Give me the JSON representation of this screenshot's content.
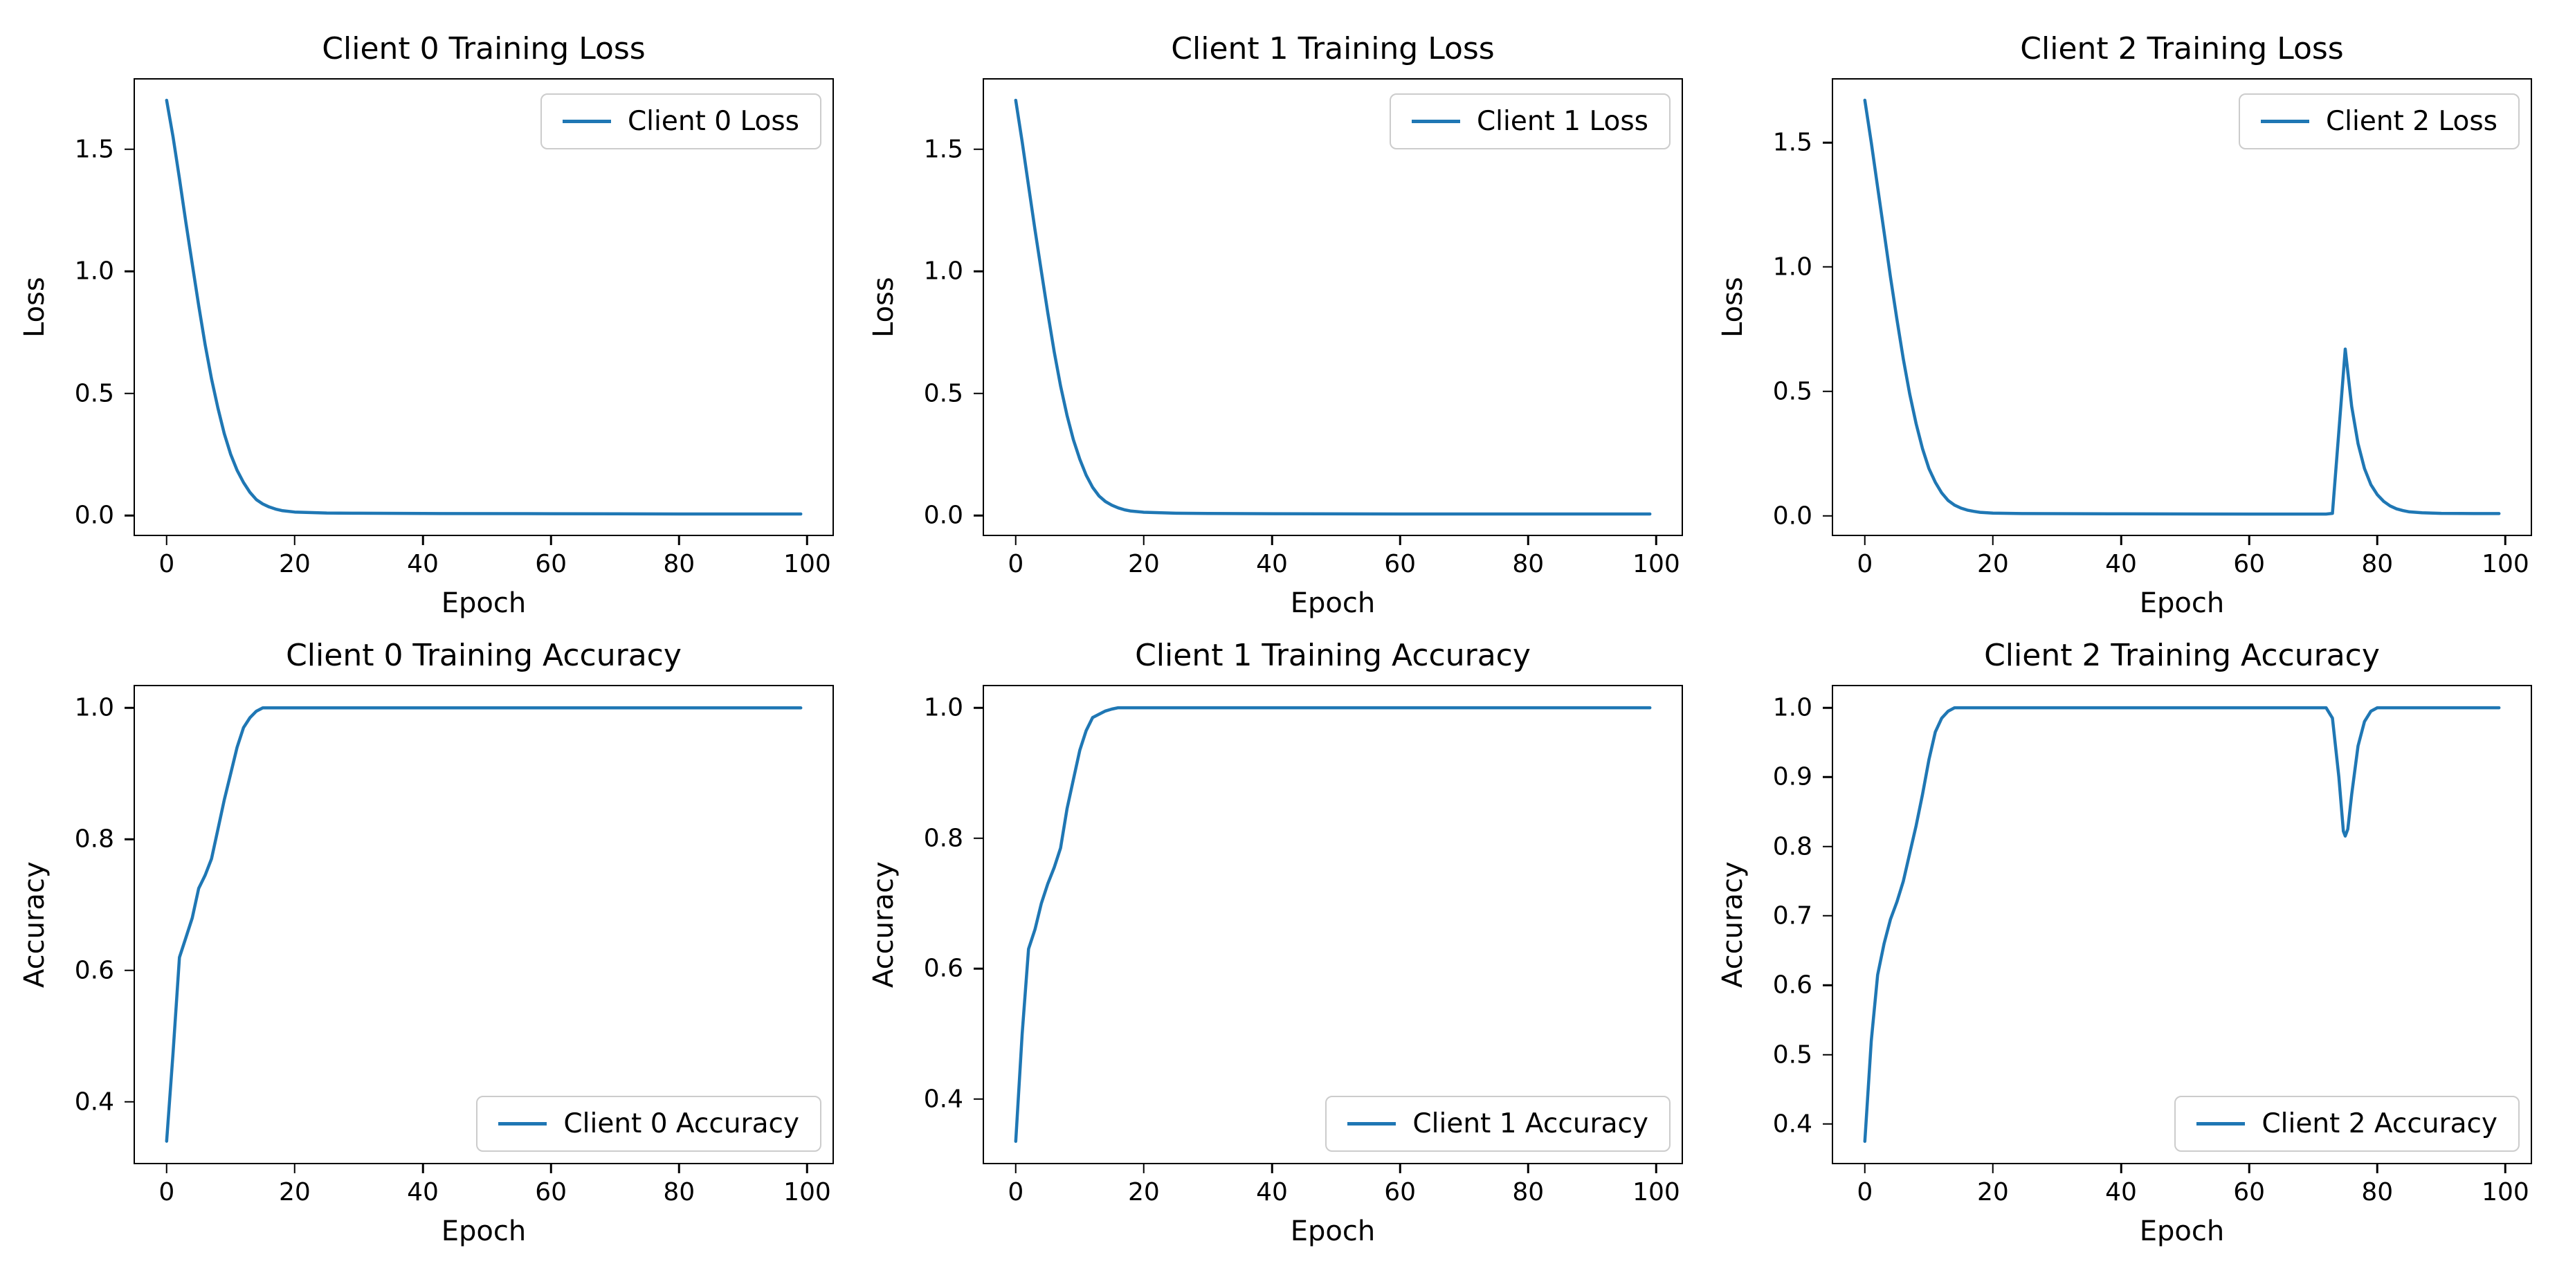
{
  "figure": {
    "background": "#ffffff",
    "line_color": "#1f77b4",
    "text_color": "#000000",
    "spine_color": "#000000",
    "legend_edge_color": "#cccccc",
    "grid": false
  },
  "chart_data": [
    {
      "type": "line",
      "title": "Client 0 Training Loss",
      "xlabel": "Epoch",
      "ylabel": "Loss",
      "legend": [
        "Client 0 Loss"
      ],
      "legend_position": "upper right",
      "xlim": [
        -4.95,
        103.95
      ],
      "ylim": [
        -0.079,
        1.785
      ],
      "xtick_values": [
        0,
        20,
        40,
        60,
        80,
        100
      ],
      "xtick_labels": [
        "0",
        "20",
        "40",
        "60",
        "80",
        "100"
      ],
      "ytick_values": [
        0.0,
        0.5,
        1.0,
        1.5
      ],
      "ytick_labels": [
        "0.0",
        "0.5",
        "1.0",
        "1.5"
      ],
      "series": [
        {
          "name": "Client 0 Loss",
          "points": [
            [
              0,
              1.7
            ],
            [
              1,
              1.55
            ],
            [
              2,
              1.38
            ],
            [
              3,
              1.2
            ],
            [
              4,
              1.03
            ],
            [
              5,
              0.86
            ],
            [
              6,
              0.7
            ],
            [
              7,
              0.56
            ],
            [
              8,
              0.44
            ],
            [
              9,
              0.335
            ],
            [
              10,
              0.25
            ],
            [
              11,
              0.185
            ],
            [
              12,
              0.135
            ],
            [
              13,
              0.095
            ],
            [
              14,
              0.065
            ],
            [
              15,
              0.047
            ],
            [
              16,
              0.035
            ],
            [
              17,
              0.026
            ],
            [
              18,
              0.02
            ],
            [
              20,
              0.014
            ],
            [
              25,
              0.01
            ],
            [
              30,
              0.009
            ],
            [
              40,
              0.008
            ],
            [
              60,
              0.007
            ],
            [
              80,
              0.006
            ],
            [
              99,
              0.006
            ]
          ]
        }
      ]
    },
    {
      "type": "line",
      "title": "Client 1 Training Loss",
      "xlabel": "Epoch",
      "ylabel": "Loss",
      "legend": [
        "Client 1 Loss"
      ],
      "legend_position": "upper right",
      "xlim": [
        -4.95,
        103.95
      ],
      "ylim": [
        -0.079,
        1.785
      ],
      "xtick_values": [
        0,
        20,
        40,
        60,
        80,
        100
      ],
      "xtick_labels": [
        "0",
        "20",
        "40",
        "60",
        "80",
        "100"
      ],
      "ytick_values": [
        0.0,
        0.5,
        1.0,
        1.5
      ],
      "ytick_labels": [
        "0.0",
        "0.5",
        "1.0",
        "1.5"
      ],
      "series": [
        {
          "name": "Client 1 Loss",
          "points": [
            [
              0,
              1.7
            ],
            [
              1,
              1.53
            ],
            [
              2,
              1.35
            ],
            [
              3,
              1.17
            ],
            [
              4,
              1.0
            ],
            [
              5,
              0.83
            ],
            [
              6,
              0.67
            ],
            [
              7,
              0.53
            ],
            [
              8,
              0.41
            ],
            [
              9,
              0.31
            ],
            [
              10,
              0.23
            ],
            [
              11,
              0.165
            ],
            [
              12,
              0.115
            ],
            [
              13,
              0.08
            ],
            [
              14,
              0.057
            ],
            [
              15,
              0.042
            ],
            [
              16,
              0.031
            ],
            [
              17,
              0.023
            ],
            [
              18,
              0.018
            ],
            [
              20,
              0.013
            ],
            [
              25,
              0.009
            ],
            [
              30,
              0.008
            ],
            [
              40,
              0.007
            ],
            [
              60,
              0.006
            ],
            [
              80,
              0.006
            ],
            [
              99,
              0.006
            ]
          ]
        }
      ]
    },
    {
      "type": "line",
      "title": "Client 2 Training Loss",
      "xlabel": "Epoch",
      "ylabel": "Loss",
      "legend": [
        "Client 2 Loss"
      ],
      "legend_position": "upper right",
      "xlim": [
        -4.95,
        103.95
      ],
      "ylim": [
        -0.076,
        1.753
      ],
      "xtick_values": [
        0,
        20,
        40,
        60,
        80,
        100
      ],
      "xtick_labels": [
        "0",
        "20",
        "40",
        "60",
        "80",
        "100"
      ],
      "ytick_values": [
        0.0,
        0.5,
        1.0,
        1.5
      ],
      "ytick_labels": [
        "0.0",
        "0.5",
        "1.0",
        "1.5"
      ],
      "series": [
        {
          "name": "Client 2 Loss",
          "points": [
            [
              0,
              1.67
            ],
            [
              1,
              1.5
            ],
            [
              2,
              1.32
            ],
            [
              3,
              1.14
            ],
            [
              4,
              0.96
            ],
            [
              5,
              0.79
            ],
            [
              6,
              0.63
            ],
            [
              7,
              0.49
            ],
            [
              8,
              0.37
            ],
            [
              9,
              0.27
            ],
            [
              10,
              0.19
            ],
            [
              11,
              0.135
            ],
            [
              12,
              0.092
            ],
            [
              13,
              0.062
            ],
            [
              14,
              0.043
            ],
            [
              15,
              0.031
            ],
            [
              16,
              0.023
            ],
            [
              17,
              0.018
            ],
            [
              18,
              0.014
            ],
            [
              20,
              0.011
            ],
            [
              25,
              0.009
            ],
            [
              40,
              0.008
            ],
            [
              60,
              0.007
            ],
            [
              72,
              0.007
            ],
            [
              73,
              0.01
            ],
            [
              74,
              0.34
            ],
            [
              75,
              0.67
            ],
            [
              76,
              0.44
            ],
            [
              77,
              0.29
            ],
            [
              78,
              0.19
            ],
            [
              79,
              0.125
            ],
            [
              80,
              0.085
            ],
            [
              81,
              0.058
            ],
            [
              82,
              0.04
            ],
            [
              83,
              0.028
            ],
            [
              84,
              0.021
            ],
            [
              85,
              0.016
            ],
            [
              87,
              0.012
            ],
            [
              90,
              0.01
            ],
            [
              95,
              0.009
            ],
            [
              99,
              0.009
            ]
          ]
        }
      ]
    },
    {
      "type": "line",
      "title": "Client 0 Training Accuracy",
      "xlabel": "Epoch",
      "ylabel": "Accuracy",
      "legend": [
        "Client 0 Accuracy"
      ],
      "legend_position": "lower right",
      "xlim": [
        -4.95,
        103.95
      ],
      "ylim": [
        0.307,
        1.033
      ],
      "xtick_values": [
        0,
        20,
        40,
        60,
        80,
        100
      ],
      "xtick_labels": [
        "0",
        "20",
        "40",
        "60",
        "80",
        "100"
      ],
      "ytick_values": [
        0.4,
        0.6,
        0.8,
        1.0
      ],
      "ytick_labels": [
        "0.4",
        "0.6",
        "0.8",
        "1.0"
      ],
      "series": [
        {
          "name": "Client 0 Accuracy",
          "points": [
            [
              0,
              0.34
            ],
            [
              1,
              0.475
            ],
            [
              2,
              0.62
            ],
            [
              3,
              0.65
            ],
            [
              4,
              0.68
            ],
            [
              5,
              0.725
            ],
            [
              6,
              0.745
            ],
            [
              7,
              0.77
            ],
            [
              8,
              0.815
            ],
            [
              9,
              0.86
            ],
            [
              10,
              0.9
            ],
            [
              11,
              0.94
            ],
            [
              12,
              0.97
            ],
            [
              13,
              0.985
            ],
            [
              14,
              0.995
            ],
            [
              15,
              1.0
            ],
            [
              20,
              1.0
            ],
            [
              40,
              1.0
            ],
            [
              60,
              1.0
            ],
            [
              80,
              1.0
            ],
            [
              99,
              1.0
            ]
          ]
        }
      ]
    },
    {
      "type": "line",
      "title": "Client 1 Training Accuracy",
      "xlabel": "Epoch",
      "ylabel": "Accuracy",
      "legend": [
        "Client 1 Accuracy"
      ],
      "legend_position": "lower right",
      "xlim": [
        -4.95,
        103.95
      ],
      "ylim": [
        0.302,
        1.033
      ],
      "xtick_values": [
        0,
        20,
        40,
        60,
        80,
        100
      ],
      "xtick_labels": [
        "0",
        "20",
        "40",
        "60",
        "80",
        "100"
      ],
      "ytick_values": [
        0.4,
        0.6,
        0.8,
        1.0
      ],
      "ytick_labels": [
        "0.4",
        "0.6",
        "0.8",
        "1.0"
      ],
      "series": [
        {
          "name": "Client 1 Accuracy",
          "points": [
            [
              0,
              0.335
            ],
            [
              1,
              0.5
            ],
            [
              2,
              0.63
            ],
            [
              3,
              0.66
            ],
            [
              4,
              0.7
            ],
            [
              5,
              0.73
            ],
            [
              6,
              0.755
            ],
            [
              7,
              0.785
            ],
            [
              8,
              0.845
            ],
            [
              9,
              0.89
            ],
            [
              10,
              0.935
            ],
            [
              11,
              0.965
            ],
            [
              12,
              0.985
            ],
            [
              13,
              0.99
            ],
            [
              14,
              0.995
            ],
            [
              15,
              0.998
            ],
            [
              16,
              1.0
            ],
            [
              40,
              1.0
            ],
            [
              60,
              1.0
            ],
            [
              80,
              1.0
            ],
            [
              99,
              1.0
            ]
          ]
        }
      ]
    },
    {
      "type": "line",
      "title": "Client 2 Training Accuracy",
      "xlabel": "Epoch",
      "ylabel": "Accuracy",
      "legend": [
        "Client 2 Accuracy"
      ],
      "legend_position": "lower right",
      "xlim": [
        -4.95,
        103.95
      ],
      "ylim": [
        0.344,
        1.031
      ],
      "xtick_values": [
        0,
        20,
        40,
        60,
        80,
        100
      ],
      "xtick_labels": [
        "0",
        "20",
        "40",
        "60",
        "80",
        "100"
      ],
      "ytick_values": [
        0.4,
        0.5,
        0.6,
        0.7,
        0.8,
        0.9,
        1.0
      ],
      "ytick_labels": [
        "0.4",
        "0.5",
        "0.6",
        "0.7",
        "0.8",
        "0.9",
        "1.0"
      ],
      "series": [
        {
          "name": "Client 2 Accuracy",
          "points": [
            [
              0,
              0.375
            ],
            [
              1,
              0.52
            ],
            [
              2,
              0.615
            ],
            [
              3,
              0.66
            ],
            [
              4,
              0.695
            ],
            [
              5,
              0.72
            ],
            [
              6,
              0.75
            ],
            [
              7,
              0.79
            ],
            [
              8,
              0.83
            ],
            [
              9,
              0.875
            ],
            [
              10,
              0.925
            ],
            [
              11,
              0.965
            ],
            [
              12,
              0.985
            ],
            [
              13,
              0.995
            ],
            [
              14,
              1.0
            ],
            [
              40,
              1.0
            ],
            [
              72,
              1.0
            ],
            [
              73,
              0.985
            ],
            [
              74,
              0.9
            ],
            [
              74.7,
              0.822
            ],
            [
              75,
              0.815
            ],
            [
              75.4,
              0.825
            ],
            [
              76,
              0.875
            ],
            [
              77,
              0.945
            ],
            [
              78,
              0.98
            ],
            [
              79,
              0.995
            ],
            [
              80,
              1.0
            ],
            [
              90,
              1.0
            ],
            [
              99,
              1.0
            ]
          ]
        }
      ]
    }
  ]
}
